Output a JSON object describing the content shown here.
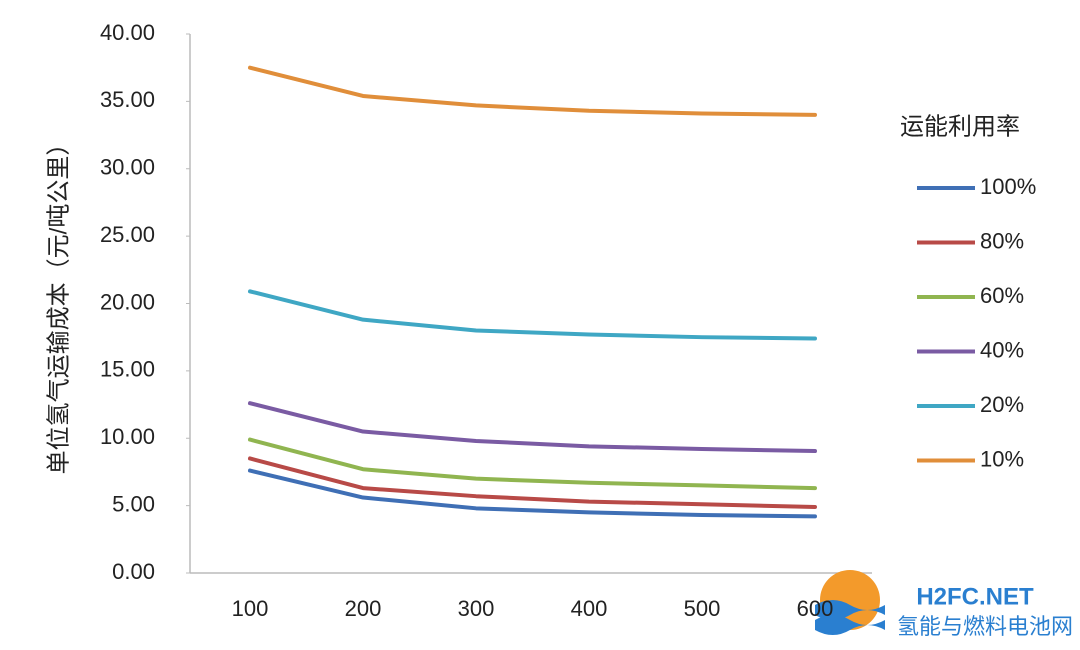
{
  "chart_data": {
    "type": "line",
    "y_label": "单位氢气运输成本（元/吨公里）",
    "legend_title": "运能利用率",
    "categories": [
      "100",
      "200",
      "300",
      "400",
      "500",
      "600"
    ],
    "series": [
      {
        "name": "100%",
        "color": "#3f6fb5",
        "values": [
          7.6,
          5.6,
          4.8,
          4.5,
          4.3,
          4.2
        ]
      },
      {
        "name": "80%",
        "color": "#b84a47",
        "values": [
          8.5,
          6.3,
          5.7,
          5.3,
          5.1,
          4.9
        ]
      },
      {
        "name": "60%",
        "color": "#90b550",
        "values": [
          9.9,
          7.7,
          7.0,
          6.7,
          6.5,
          6.3
        ]
      },
      {
        "name": "40%",
        "color": "#7a5ba3",
        "values": [
          12.6,
          10.5,
          9.8,
          9.4,
          9.2,
          9.05
        ]
      },
      {
        "name": "20%",
        "color": "#3fa7c4",
        "values": [
          20.9,
          18.8,
          18.0,
          17.7,
          17.5,
          17.4
        ]
      },
      {
        "name": "10%",
        "color": "#e08e3a",
        "values": [
          37.5,
          35.4,
          34.7,
          34.3,
          34.1,
          34.0
        ]
      }
    ],
    "ylim": [
      0,
      40
    ],
    "yticks": [
      {
        "value": 0,
        "label": "0.00"
      },
      {
        "value": 5,
        "label": "5.00"
      },
      {
        "value": 10,
        "label": "10.00"
      },
      {
        "value": 15,
        "label": "15.00"
      },
      {
        "value": 20,
        "label": "20.00"
      },
      {
        "value": 25,
        "label": "25.00"
      },
      {
        "value": 30,
        "label": "30.00"
      },
      {
        "value": 35,
        "label": "35.00"
      },
      {
        "value": 40,
        "label": "40.00"
      }
    ],
    "grid": false,
    "legend": "right",
    "watermark": [
      "H2FC.NET",
      "氢能与燃料电池网"
    ]
  }
}
